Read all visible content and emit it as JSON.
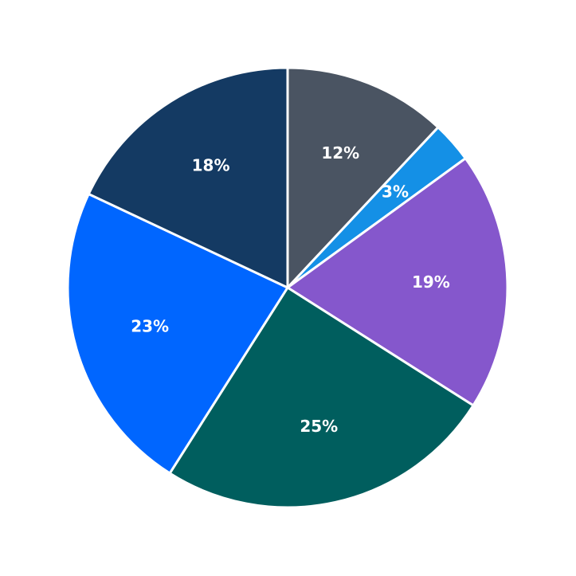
{
  "chart_data": {
    "type": "pie",
    "values": [
      12,
      3,
      19,
      25,
      23,
      18
    ],
    "value_labels": [
      "12%",
      "3%",
      "19%",
      "25%",
      "23%",
      "18%"
    ],
    "colors": [
      "#4a5462",
      "#1490e6",
      "#8557cc",
      "#005e5e",
      "#0066ff",
      "#143a63"
    ]
  }
}
